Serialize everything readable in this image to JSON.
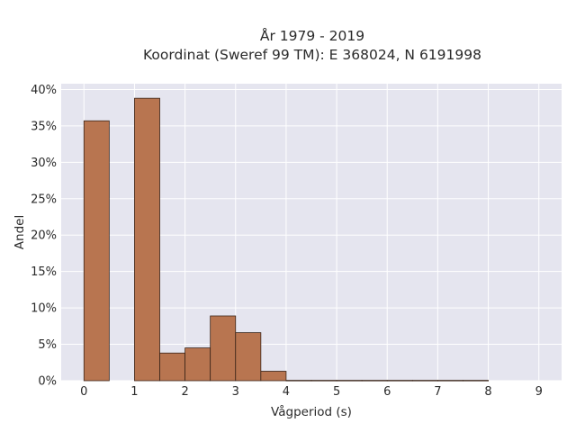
{
  "chart_data": {
    "type": "bar",
    "title_line1": "År 1979 - 2019",
    "title_line2": "Koordinat (Sweref 99 TM): E 368024, N 6191998",
    "xlabel": "Vågperiod (s)",
    "ylabel": "Andel",
    "xlim": [
      -0.45,
      9.45
    ],
    "ylim": [
      0,
      40.8
    ],
    "x_ticks": [
      0,
      1,
      2,
      3,
      4,
      5,
      6,
      7,
      8,
      9
    ],
    "y_ticks": [
      0,
      5,
      10,
      15,
      20,
      25,
      30,
      35,
      40
    ],
    "y_tick_suffix": "%",
    "bin_width": 0.5,
    "bins": [
      {
        "x0": 0.0,
        "value": 35.7
      },
      {
        "x0": 0.5,
        "value": 0.0
      },
      {
        "x0": 1.0,
        "value": 38.8
      },
      {
        "x0": 1.5,
        "value": 3.8
      },
      {
        "x0": 2.0,
        "value": 4.5
      },
      {
        "x0": 2.5,
        "value": 8.9
      },
      {
        "x0": 3.0,
        "value": 6.6
      },
      {
        "x0": 3.5,
        "value": 1.3
      },
      {
        "x0": 4.0,
        "value": 0.05
      },
      {
        "x0": 4.5,
        "value": 0.05
      },
      {
        "x0": 5.0,
        "value": 0.05
      },
      {
        "x0": 5.5,
        "value": 0.05
      },
      {
        "x0": 6.0,
        "value": 0.05
      },
      {
        "x0": 6.5,
        "value": 0.05
      },
      {
        "x0": 7.0,
        "value": 0.05
      },
      {
        "x0": 7.5,
        "value": 0.05
      }
    ],
    "bar_color": "#b87550",
    "plot_background": "#e5e5ef",
    "grid": true
  }
}
